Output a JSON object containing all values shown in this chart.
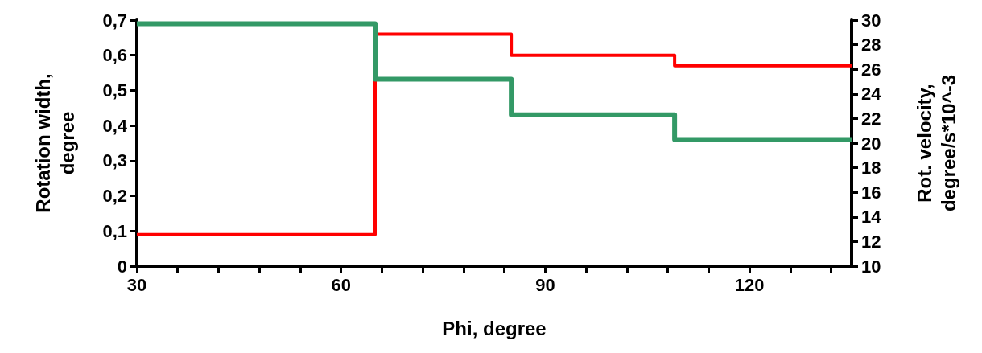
{
  "chart_data": {
    "type": "step",
    "xlabel": "Phi, degree",
    "ylabel": "Rotation width,\ndegree",
    "y2label": "Rot. velocity,\ndegree/s*10^-3",
    "series": [
      {
        "color": "#ff0000",
        "x": [
          30,
          65,
          85,
          109,
          135
        ],
        "values": [
          0.09,
          0.66,
          0.6,
          0.57,
          0.57
        ]
      },
      {
        "color": "#339966",
        "axis": "y2",
        "x": [
          30,
          65,
          85,
          109,
          135
        ],
        "values": [
          29.7,
          25.2,
          22.3,
          20.3,
          20.3
        ]
      }
    ],
    "xlim": [
      30,
      135
    ],
    "xticks": [
      30,
      {
        "value": 36,
        "label": null
      },
      {
        "value": 42,
        "label": null
      },
      {
        "value": 48,
        "label": null
      },
      {
        "value": 54,
        "label": null
      },
      60,
      {
        "value": 66,
        "label": null
      },
      {
        "value": 72,
        "label": null
      },
      {
        "value": 78,
        "label": null
      },
      {
        "value": 84,
        "label": null
      },
      90,
      {
        "value": 96,
        "label": null
      },
      {
        "value": 102,
        "label": null
      },
      {
        "value": 108,
        "label": null
      },
      {
        "value": 114,
        "label": null
      },
      120,
      {
        "value": 126,
        "label": null
      },
      {
        "value": 132,
        "label": null
      }
    ],
    "ylim": [
      0,
      0.7
    ],
    "yticks": [
      0,
      {
        "value": 0.1,
        "label": "0,1"
      },
      {
        "value": 0.2,
        "label": "0,2"
      },
      {
        "value": 0.3,
        "label": "0,3"
      },
      {
        "value": 0.4,
        "label": "0,4"
      },
      {
        "value": 0.5,
        "label": "0,5"
      },
      {
        "value": 0.6,
        "label": "0,6"
      },
      {
        "value": 0.7,
        "label": "0,7"
      }
    ],
    "y2lim": [
      10,
      30
    ],
    "y2ticks": [
      10,
      12,
      14,
      16,
      18,
      20,
      22,
      24,
      26,
      28,
      30
    ],
    "grid": false,
    "marker": "none",
    "line_style": "solid"
  }
}
